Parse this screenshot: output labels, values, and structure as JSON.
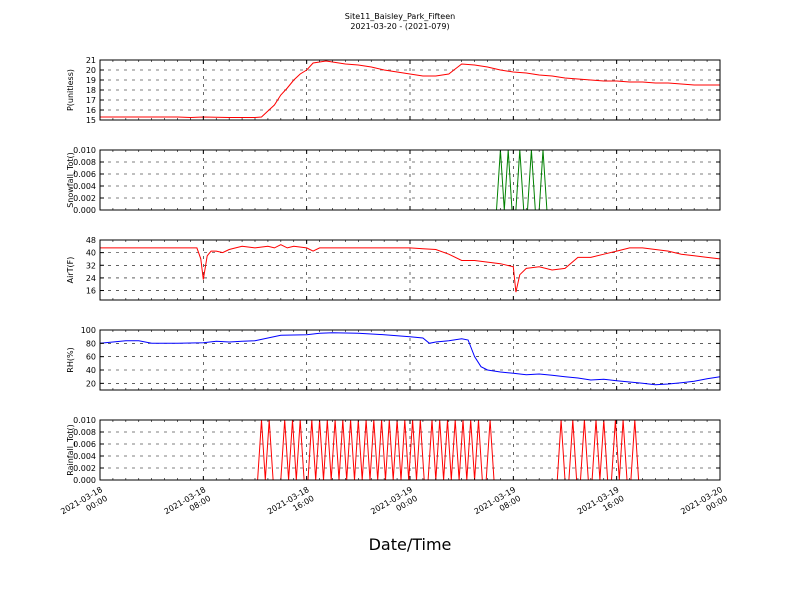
{
  "title": "Site11_Baisley_Park_Fifteen",
  "subtitle": "2021-03-20 - (2021-079)",
  "xlabel": "Date/Time",
  "chart_data": [
    {
      "type": "line",
      "ylabel": "P(unitless)",
      "ylim": [
        15,
        21
      ],
      "yticks": [
        "15",
        "16",
        "17",
        "18",
        "19",
        "20",
        "21"
      ],
      "xlim": [
        0,
        48
      ],
      "grid": true,
      "color": "#ff0000",
      "series": [
        {
          "x": [
            0,
            2,
            4,
            6,
            7,
            8,
            10,
            12,
            12.5,
            13,
            13.5,
            14,
            14.5,
            15,
            15.5,
            16,
            16.5,
            17,
            17.5,
            18,
            18.5,
            19,
            20,
            21,
            22,
            23,
            24,
            25,
            26,
            27,
            27.5,
            28,
            29,
            30,
            31,
            32,
            33,
            34,
            35,
            36,
            37,
            38,
            39,
            40,
            41,
            42,
            43,
            44,
            45,
            46,
            47,
            48
          ],
          "values": [
            15.3,
            15.3,
            15.3,
            15.3,
            15.25,
            15.3,
            15.25,
            15.25,
            15.3,
            15.9,
            16.5,
            17.5,
            18.2,
            19.0,
            19.6,
            20.0,
            20.7,
            20.8,
            20.9,
            20.8,
            20.7,
            20.6,
            20.5,
            20.3,
            20.0,
            19.8,
            19.6,
            19.4,
            19.4,
            19.6,
            20.1,
            20.6,
            20.5,
            20.3,
            20.0,
            19.8,
            19.7,
            19.5,
            19.4,
            19.2,
            19.1,
            19.0,
            18.9,
            18.9,
            18.8,
            18.8,
            18.7,
            18.7,
            18.6,
            18.5,
            18.5,
            18.5
          ]
        }
      ]
    },
    {
      "type": "line",
      "ylabel": "Snowfall_Tot()",
      "ylim": [
        0,
        0.01
      ],
      "yticks": [
        "0.000",
        "0.002",
        "0.004",
        "0.006",
        "0.008",
        "0.010"
      ],
      "xlim": [
        0,
        48
      ],
      "grid": true,
      "color": "#008000",
      "series": [
        {
          "x": [
            0,
            30.7,
            31.0,
            31.3,
            31.6,
            31.9,
            32.2,
            32.5,
            32.8,
            33.1,
            33.4,
            33.7,
            34.0,
            34.3,
            34.6,
            34.9,
            48
          ],
          "values": [
            0,
            0,
            0.01,
            0,
            0.01,
            0,
            0,
            0.01,
            0,
            0,
            0.01,
            0,
            0,
            0.01,
            0,
            0,
            0
          ]
        }
      ]
    },
    {
      "type": "line",
      "ylabel": "AirT(F)",
      "ylim": [
        10,
        48
      ],
      "yticks": [
        "16",
        "24",
        "32",
        "40",
        "48"
      ],
      "xlim": [
        0,
        48
      ],
      "grid": true,
      "color": "#ff0000",
      "series": [
        {
          "x": [
            0,
            2,
            4,
            6,
            7.5,
            7.8,
            8.0,
            8.3,
            8.6,
            9,
            9.5,
            10,
            10.5,
            11,
            12,
            13,
            13.5,
            14,
            14.5,
            15,
            16,
            16.5,
            17,
            18,
            20,
            22,
            24,
            25,
            26,
            27,
            28,
            29,
            30,
            31,
            32,
            32.2,
            32.5,
            33,
            34,
            35,
            36,
            37,
            38,
            39,
            40,
            41,
            42,
            43,
            44,
            45,
            46,
            47,
            48
          ],
          "values": [
            43,
            43,
            43,
            43,
            43,
            36,
            23,
            38,
            41,
            41,
            40,
            42,
            43,
            44,
            43,
            44,
            43,
            45,
            43,
            44,
            43,
            41,
            43,
            43,
            43,
            43,
            43,
            42.5,
            42,
            39,
            35,
            35,
            34,
            33,
            31,
            15,
            26,
            30,
            31,
            29,
            30,
            37,
            37,
            39,
            41,
            43,
            43,
            42,
            41,
            39,
            38,
            37,
            36
          ]
        }
      ]
    },
    {
      "type": "line",
      "ylabel": "RH(%)",
      "ylim": [
        10,
        100
      ],
      "yticks": [
        "20",
        "40",
        "60",
        "80",
        "100"
      ],
      "xlim": [
        0,
        48
      ],
      "grid": true,
      "color": "#0000ff",
      "series": [
        {
          "x": [
            0,
            1,
            2,
            3,
            4,
            6,
            8,
            9,
            10,
            11,
            12,
            13,
            14,
            16,
            17,
            18,
            20,
            22,
            24,
            25,
            25.5,
            26,
            27,
            28,
            28.5,
            29,
            29.5,
            30,
            31,
            32,
            33,
            34,
            35,
            36,
            37,
            38,
            39,
            40,
            41,
            42,
            43,
            44,
            45,
            46,
            47,
            48
          ],
          "values": [
            80,
            82,
            84,
            84,
            80,
            80,
            81,
            83,
            82,
            83,
            84,
            88,
            92,
            93,
            95,
            96,
            95,
            93,
            90,
            88,
            80,
            82,
            84,
            87,
            85,
            60,
            45,
            40,
            37,
            35,
            33,
            34,
            32,
            30,
            28,
            25,
            26,
            24,
            22,
            20,
            18,
            19,
            21,
            23,
            27,
            30
          ]
        }
      ]
    },
    {
      "type": "line",
      "ylabel": "Rainfall_Tot()",
      "ylim": [
        0,
        0.01
      ],
      "yticks": [
        "0.000",
        "0.002",
        "0.004",
        "0.006",
        "0.008",
        "0.010"
      ],
      "xlim": [
        0,
        48
      ],
      "grid": true,
      "color": "#ff0000",
      "series": [
        {
          "x": [
            0,
            12.2,
            12.5,
            12.8,
            13.1,
            13.4,
            13.7,
            14.0,
            14.3,
            14.6,
            14.9,
            15.2,
            15.5,
            15.8,
            16.1,
            16.4,
            16.7,
            17.0,
            17.3,
            17.6,
            17.9,
            18.2,
            18.5,
            18.8,
            19.1,
            19.4,
            19.7,
            20.0,
            20.3,
            20.6,
            20.9,
            21.2,
            21.5,
            21.8,
            22.1,
            22.4,
            22.7,
            23.0,
            23.3,
            23.6,
            23.9,
            24.2,
            24.5,
            24.8,
            25.1,
            25.4,
            25.7,
            26.0,
            26.3,
            26.6,
            26.9,
            27.2,
            27.5,
            27.8,
            28.1,
            28.4,
            28.7,
            29.0,
            29.3,
            29.6,
            29.9,
            30.2,
            30.5,
            35.4,
            35.7,
            36.0,
            36.3,
            36.6,
            36.9,
            37.2,
            37.5,
            37.8,
            38.1,
            38.4,
            38.7,
            39.0,
            39.3,
            39.6,
            39.9,
            40.2,
            40.5,
            40.8,
            41.1,
            41.4,
            41.7,
            48
          ],
          "values": [
            0,
            0,
            0.01,
            0,
            0.01,
            0,
            0,
            0,
            0.01,
            0,
            0.01,
            0,
            0.01,
            0,
            0,
            0.01,
            0,
            0.01,
            0,
            0.01,
            0,
            0.01,
            0,
            0.01,
            0,
            0.01,
            0,
            0.01,
            0,
            0.01,
            0,
            0.01,
            0,
            0.01,
            0,
            0.01,
            0,
            0.01,
            0,
            0.01,
            0,
            0.01,
            0,
            0.01,
            0,
            0,
            0.01,
            0,
            0.01,
            0,
            0.01,
            0,
            0.01,
            0,
            0.01,
            0,
            0.01,
            0,
            0.01,
            0,
            0,
            0.01,
            0,
            0,
            0.01,
            0,
            0,
            0.01,
            0,
            0,
            0.01,
            0,
            0,
            0.01,
            0,
            0.01,
            0,
            0,
            0.01,
            0,
            0.01,
            0,
            0,
            0.01,
            0,
            0
          ]
        }
      ]
    }
  ],
  "x_ticks": [
    {
      "x": 0,
      "date": "2021-03-18",
      "time": "00:00"
    },
    {
      "x": 8,
      "date": "2021-03-18",
      "time": "08:00"
    },
    {
      "x": 16,
      "date": "2021-03-18",
      "time": "16:00"
    },
    {
      "x": 24,
      "date": "2021-03-19",
      "time": "00:00"
    },
    {
      "x": 32,
      "date": "2021-03-19",
      "time": "08:00"
    },
    {
      "x": 40,
      "date": "2021-03-19",
      "time": "16:00"
    },
    {
      "x": 48,
      "date": "2021-03-20",
      "time": "00:00"
    }
  ]
}
